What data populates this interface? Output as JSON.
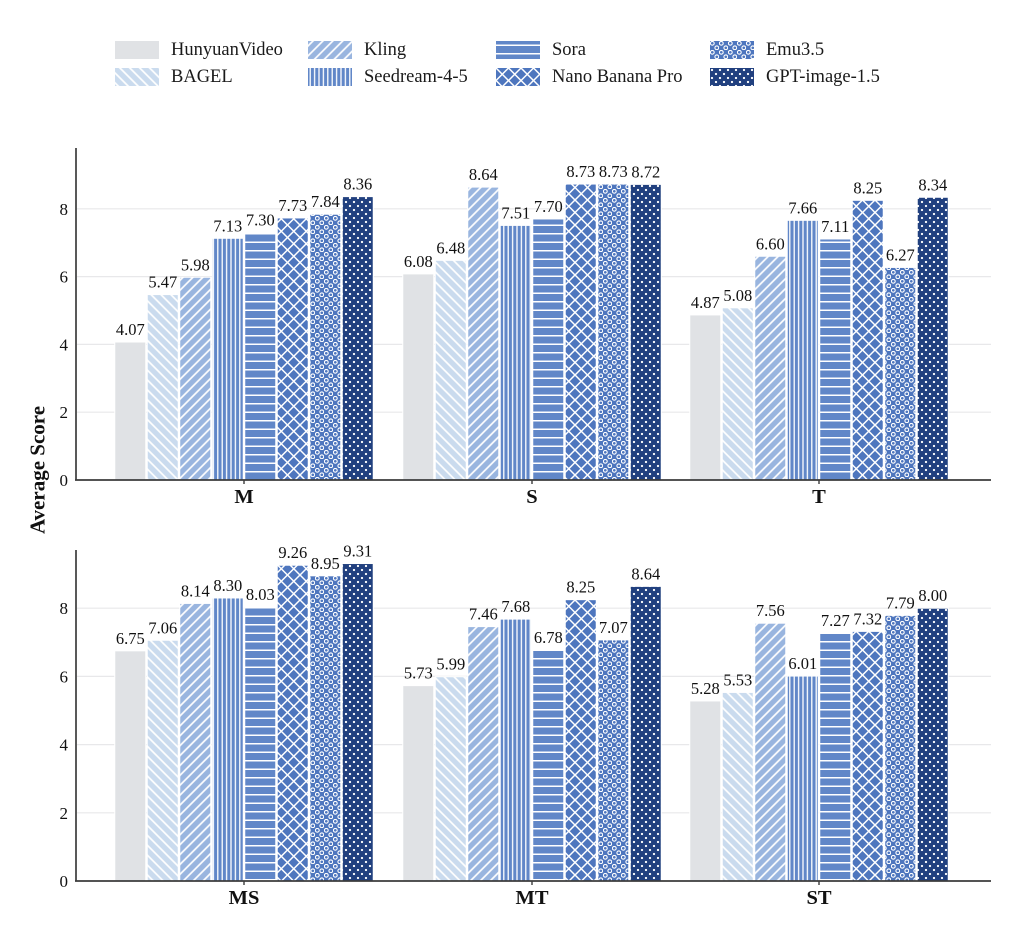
{
  "chart_data": {
    "type": "bar",
    "title": "",
    "ylabel": "Average Score",
    "xlabel": "",
    "yticks": [
      0,
      2,
      4,
      6,
      8
    ],
    "ylim": [
      0,
      9.8
    ],
    "grid": true,
    "legend_position": "top",
    "value_labels": true,
    "value_label_format": "2-decimals",
    "categories": [
      "M",
      "S",
      "T",
      "MS",
      "MT",
      "ST"
    ],
    "panel_rows": [
      [
        "M",
        "S",
        "T"
      ],
      [
        "MS",
        "MT",
        "ST"
      ]
    ],
    "series": [
      {
        "name": "HunyuanVideo",
        "color": "#e0e2e5",
        "pattern": "solid",
        "values": [
          4.07,
          6.08,
          4.87,
          6.75,
          5.73,
          5.28
        ]
      },
      {
        "name": "BAGEL",
        "color": "#cadbee",
        "pattern": "diagonal-forward",
        "values": [
          5.47,
          6.48,
          5.08,
          7.06,
          5.99,
          5.53
        ]
      },
      {
        "name": "Kling",
        "color": "#99b5df",
        "pattern": "diagonal-back",
        "values": [
          5.98,
          8.64,
          6.6,
          8.14,
          7.46,
          7.56
        ]
      },
      {
        "name": "Seedream-4-5",
        "color": "#6187c8",
        "pattern": "vertical-lines",
        "values": [
          7.13,
          7.51,
          7.66,
          8.3,
          7.68,
          6.01
        ]
      },
      {
        "name": "Sora",
        "color": "#6187c8",
        "pattern": "horizontal-lines",
        "values": [
          7.3,
          7.7,
          7.11,
          8.03,
          6.78,
          7.27
        ]
      },
      {
        "name": "Nano Banana Pro",
        "color": "#4e76be",
        "pattern": "cross-diagonal",
        "values": [
          7.73,
          8.73,
          8.25,
          9.26,
          8.25,
          7.32
        ]
      },
      {
        "name": "Emu3.5",
        "color": "#4e76be",
        "pattern": "rings",
        "values": [
          7.84,
          8.73,
          6.27,
          8.95,
          7.07,
          7.79
        ]
      },
      {
        "name": "GPT-image-1.5",
        "color": "#21407f",
        "pattern": "dots",
        "values": [
          8.36,
          8.72,
          8.34,
          9.31,
          8.64,
          8.0
        ]
      }
    ],
    "appearance": {
      "background": "#ffffff",
      "grid_color": "#e8e8ea",
      "axis_color": "#3c3c3c",
      "text_color": "#111111",
      "hatch_color": "#ffffff"
    }
  }
}
